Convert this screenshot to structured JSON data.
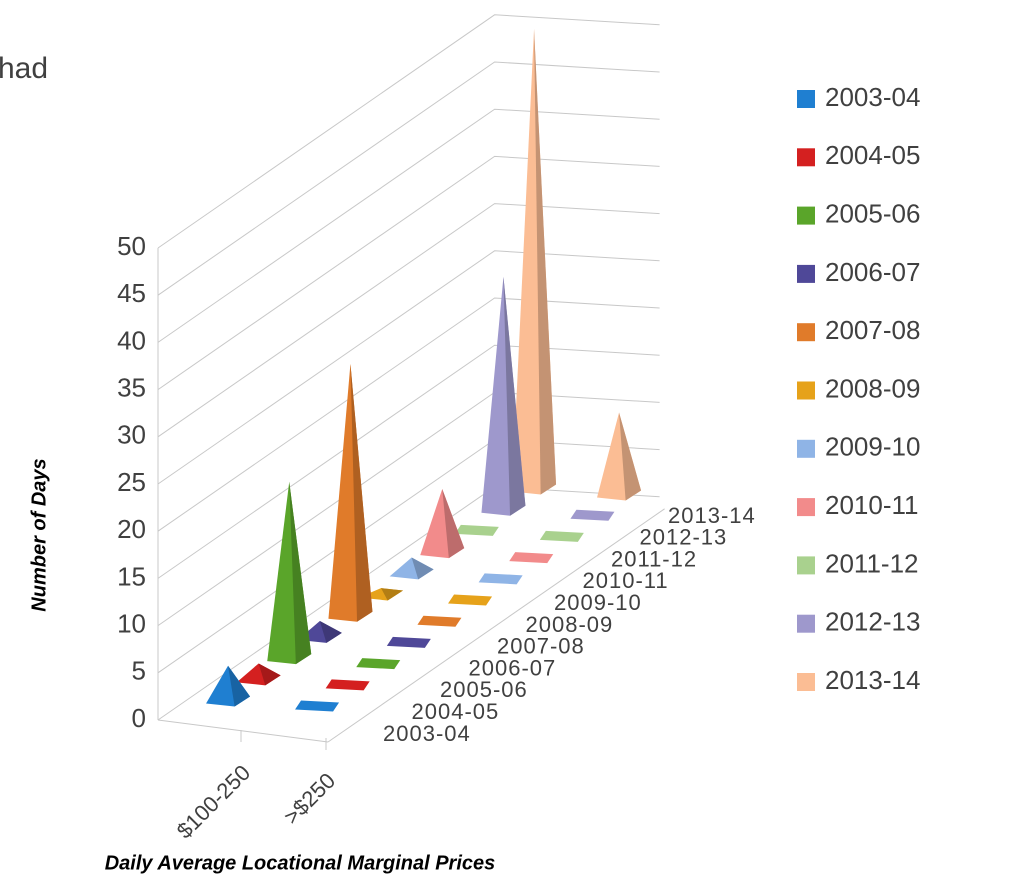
{
  "chart_data": {
    "type": "bar3d",
    "title": "had",
    "x_label": "Daily Average Locational Marginal Prices",
    "y_label": "Number of Days",
    "categories": [
      "$100-250",
      ">$250"
    ],
    "ylim": [
      0,
      50
    ],
    "yticks": [
      0,
      5,
      10,
      15,
      20,
      25,
      30,
      35,
      40,
      45,
      50
    ],
    "grid": true,
    "legend": "right",
    "series": [
      {
        "name": "2003-04",
        "color": "#1f7fd1",
        "values": [
          4,
          0
        ]
      },
      {
        "name": "2004-05",
        "color": "#d42020",
        "values": [
          2,
          0
        ]
      },
      {
        "name": "2005-06",
        "color": "#5aa52a",
        "values": [
          19,
          0
        ]
      },
      {
        "name": "2006-07",
        "color": "#4f4898",
        "values": [
          2,
          0
        ]
      },
      {
        "name": "2007-08",
        "color": "#e07b2a",
        "values": [
          27,
          0
        ]
      },
      {
        "name": "2008-09",
        "color": "#e6a21a",
        "values": [
          1,
          0
        ]
      },
      {
        "name": "2009-10",
        "color": "#8fb4e6",
        "values": [
          2,
          0
        ]
      },
      {
        "name": "2010-11",
        "color": "#f28b8b",
        "values": [
          7,
          0
        ]
      },
      {
        "name": "2011-12",
        "color": "#a9d18e",
        "values": [
          0,
          0
        ]
      },
      {
        "name": "2012-13",
        "color": "#9e98cc",
        "values": [
          25,
          0
        ]
      },
      {
        "name": "2013-14",
        "color": "#fbbd94",
        "values": [
          49,
          9
        ]
      }
    ]
  }
}
